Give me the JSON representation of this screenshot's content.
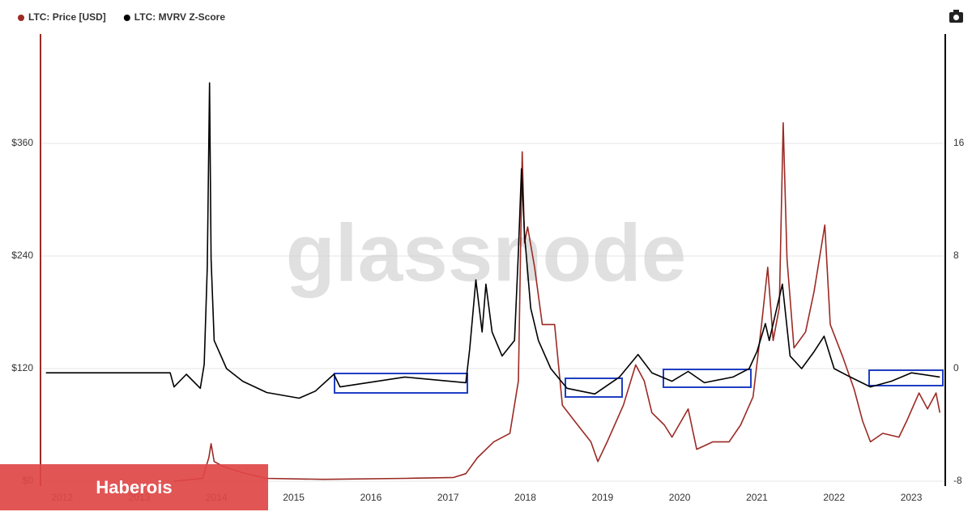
{
  "chart_data": {
    "type": "line",
    "watermark": "glassnode",
    "xlim": [
      2011.72,
      2023.44
    ],
    "xticks": [
      2012,
      2013,
      2014,
      2015,
      2016,
      2017,
      2018,
      2019,
      2020,
      2021,
      2022,
      2023
    ],
    "ylim": [
      0,
      480
    ],
    "yticks": [
      {
        "value": 0,
        "label": "$0"
      },
      {
        "value": 120,
        "label": "$120"
      },
      {
        "value": 240,
        "label": "$240"
      },
      {
        "value": 360,
        "label": "$360"
      }
    ],
    "y2lim": [
      -8,
      24
    ],
    "y2ticks": [
      -8,
      0,
      8,
      16
    ],
    "grid": true,
    "legend": "top-left",
    "series": [
      {
        "name": "LTC: Price [USD]",
        "color": "#9b2a24",
        "x": [
          2013.45,
          2013.82,
          2013.9,
          2013.93,
          2013.97,
          2014.08,
          2014.34,
          2014.65,
          2015.39,
          2016.44,
          2017.07,
          2017.23,
          2017.38,
          2017.59,
          2017.8,
          2017.91,
          2017.96,
          2017.99,
          2018.03,
          2018.12,
          2018.22,
          2018.38,
          2018.48,
          2018.64,
          2018.85,
          2018.94,
          2019.06,
          2019.27,
          2019.43,
          2019.54,
          2019.64,
          2019.8,
          2019.9,
          2020.11,
          2020.22,
          2020.43,
          2020.64,
          2020.79,
          2020.95,
          2021.06,
          2021.14,
          2021.21,
          2021.29,
          2021.34,
          2021.39,
          2021.48,
          2021.63,
          2021.74,
          2021.88,
          2021.95,
          2022.11,
          2022.26,
          2022.37,
          2022.47,
          2022.63,
          2022.84,
          2022.94,
          2023.1,
          2023.21,
          2023.32,
          2023.37
        ],
        "values": [
          0,
          3,
          25,
          40,
          21,
          16,
          9,
          3,
          2,
          3,
          4,
          8,
          25,
          42,
          51,
          107,
          351,
          254,
          271,
          228,
          167,
          167,
          81,
          64,
          42,
          21,
          42,
          81,
          124,
          107,
          73,
          60,
          47,
          77,
          34,
          42,
          42,
          60,
          90,
          167,
          228,
          150,
          185,
          382,
          237,
          142,
          159,
          202,
          273,
          167,
          133,
          98,
          64,
          42,
          51,
          47,
          64,
          94,
          77,
          94,
          73
        ]
      },
      {
        "name": "LTC: MVRV Z-Score",
        "color": "#000000",
        "axis": "y2",
        "x": [
          2011.79,
          2013.4,
          2013.45,
          2013.61,
          2013.79,
          2013.84,
          2013.88,
          2013.91,
          2013.93,
          2013.97,
          2014.13,
          2014.34,
          2014.65,
          2015.07,
          2015.28,
          2015.52,
          2015.6,
          2016.44,
          2017.23,
          2017.28,
          2017.36,
          2017.44,
          2017.49,
          2017.57,
          2017.7,
          2017.86,
          2017.91,
          2017.95,
          2017.99,
          2018.07,
          2018.17,
          2018.33,
          2018.54,
          2018.9,
          2019.22,
          2019.46,
          2019.64,
          2019.9,
          2020.11,
          2020.32,
          2020.69,
          2020.9,
          2021.0,
          2021.11,
          2021.16,
          2021.33,
          2021.43,
          2021.58,
          2021.74,
          2021.87,
          2022.0,
          2022.21,
          2022.47,
          2022.74,
          2023.0,
          2023.37
        ],
        "values": [
          -0.3,
          -0.3,
          -1.3,
          -0.4,
          -1.4,
          0.3,
          7.2,
          20.3,
          7.8,
          2.0,
          0,
          -0.9,
          -1.7,
          -2.1,
          -1.6,
          -0.4,
          -1.3,
          -0.6,
          -1.0,
          1.4,
          6.3,
          2.6,
          6.0,
          2.6,
          0.9,
          2.0,
          8.3,
          14.2,
          9.5,
          4.3,
          2.0,
          0,
          -1.4,
          -1.8,
          -0.6,
          1.0,
          -0.3,
          -0.9,
          -0.2,
          -1.0,
          -0.6,
          0,
          1.2,
          3.2,
          2.0,
          6.0,
          0.9,
          0,
          1.2,
          2.3,
          0,
          -0.6,
          -1.3,
          -0.9,
          -0.3,
          -0.6
        ]
      }
    ]
  },
  "overlay": {
    "text": "Haberois"
  }
}
